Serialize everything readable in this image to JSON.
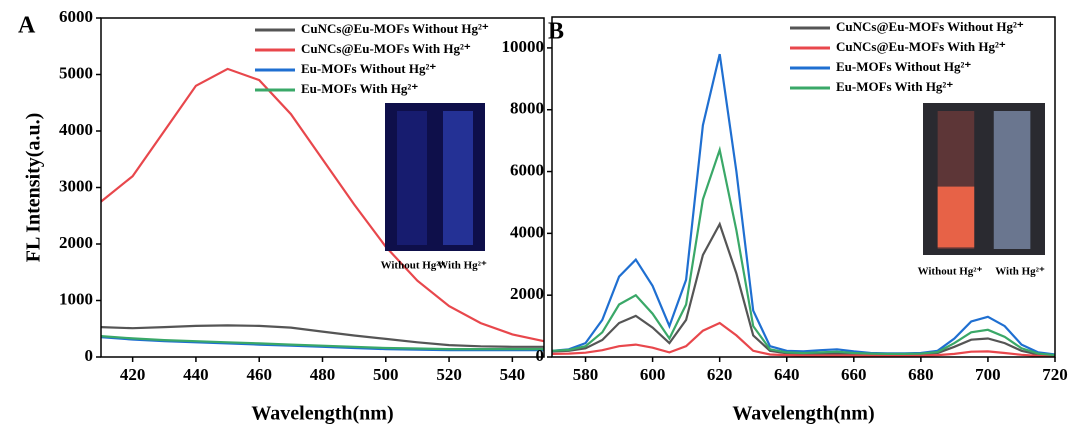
{
  "chart_data": [
    {
      "type": "line",
      "panel_label": "A",
      "y_label": "FL Intensity(a.u.)",
      "x_label": "Wavelength(nm)",
      "legend": "upper right",
      "xlim": [
        410,
        550
      ],
      "xticks": [
        420,
        440,
        460,
        480,
        500,
        520,
        540
      ],
      "ylim": [
        0,
        6000
      ],
      "yticks": [
        0,
        1000,
        2000,
        3000,
        4000,
        5000,
        6000
      ],
      "inset_labels": [
        "Without Hg²⁺",
        "With Hg²⁺"
      ],
      "x": [
        410,
        420,
        430,
        440,
        450,
        460,
        470,
        480,
        490,
        500,
        510,
        520,
        530,
        540,
        550
      ],
      "series": [
        {
          "name": "CuNCs@Eu-MOFs Without Hg²⁺",
          "color": "#555555",
          "values": [
            530,
            510,
            530,
            550,
            560,
            550,
            520,
            450,
            380,
            320,
            260,
            210,
            190,
            180,
            180
          ]
        },
        {
          "name": "CuNCs@Eu-MOFs With Hg²⁺",
          "color": "#e8474c",
          "values": [
            2750,
            3200,
            4000,
            4800,
            5100,
            4900,
            4300,
            3500,
            2700,
            1950,
            1350,
            900,
            600,
            400,
            280
          ]
        },
        {
          "name": "Eu-MOFs Without Hg²⁺",
          "color": "#1f6fd1",
          "values": [
            350,
            310,
            280,
            260,
            240,
            220,
            200,
            180,
            160,
            140,
            130,
            120,
            120,
            120,
            120
          ]
        },
        {
          "name": "Eu-MOFs With Hg²⁺",
          "color": "#3aa868",
          "values": [
            370,
            330,
            300,
            280,
            260,
            240,
            220,
            200,
            180,
            160,
            150,
            140,
            140,
            140,
            140
          ]
        }
      ]
    },
    {
      "type": "line",
      "panel_label": "B",
      "x_label": "Wavelength(nm)",
      "legend": "upper right",
      "xlim": [
        570,
        720
      ],
      "xticks": [
        580,
        600,
        620,
        640,
        660,
        680,
        700,
        720
      ],
      "ylim": [
        0,
        11000
      ],
      "yticks": [
        0,
        2000,
        4000,
        6000,
        8000,
        10000
      ],
      "inset_labels": [
        "Without Hg²⁺",
        "With Hg²⁺"
      ],
      "x": [
        570,
        575,
        580,
        585,
        590,
        595,
        600,
        605,
        610,
        615,
        620,
        625,
        630,
        635,
        640,
        645,
        650,
        655,
        660,
        665,
        670,
        675,
        680,
        685,
        690,
        695,
        700,
        705,
        710,
        715,
        720
      ],
      "series": [
        {
          "name": "CuNCs@Eu-MOFs Without Hg²⁺",
          "color": "#555555",
          "values": [
            180,
            200,
            280,
            550,
            1100,
            1330,
            950,
            450,
            1200,
            3300,
            4300,
            2700,
            700,
            200,
            120,
            100,
            110,
            120,
            100,
            90,
            80,
            80,
            90,
            130,
            330,
            560,
            600,
            450,
            200,
            80,
            40
          ]
        },
        {
          "name": "CuNCs@Eu-MOFs With Hg²⁺",
          "color": "#e8474c",
          "values": [
            100,
            110,
            140,
            220,
            350,
            400,
            300,
            150,
            350,
            850,
            1100,
            700,
            200,
            80,
            60,
            50,
            50,
            50,
            50,
            50,
            50,
            50,
            50,
            60,
            100,
            170,
            180,
            130,
            70,
            40,
            20
          ]
        },
        {
          "name": "Eu-MOFs Without Hg²⁺",
          "color": "#1f6fd1",
          "values": [
            200,
            250,
            450,
            1200,
            2600,
            3150,
            2300,
            1000,
            2500,
            7500,
            9800,
            6000,
            1500,
            350,
            200,
            180,
            220,
            250,
            180,
            130,
            120,
            120,
            130,
            200,
            600,
            1150,
            1300,
            1000,
            400,
            150,
            80
          ]
        },
        {
          "name": "Eu-MOFs With Hg²⁺",
          "color": "#3aa868",
          "values": [
            200,
            230,
            350,
            800,
            1700,
            2000,
            1400,
            600,
            1700,
            5100,
            6700,
            4100,
            1000,
            250,
            150,
            130,
            150,
            170,
            130,
            110,
            100,
            100,
            110,
            160,
            450,
            800,
            880,
            650,
            280,
            110,
            60
          ]
        }
      ]
    }
  ]
}
